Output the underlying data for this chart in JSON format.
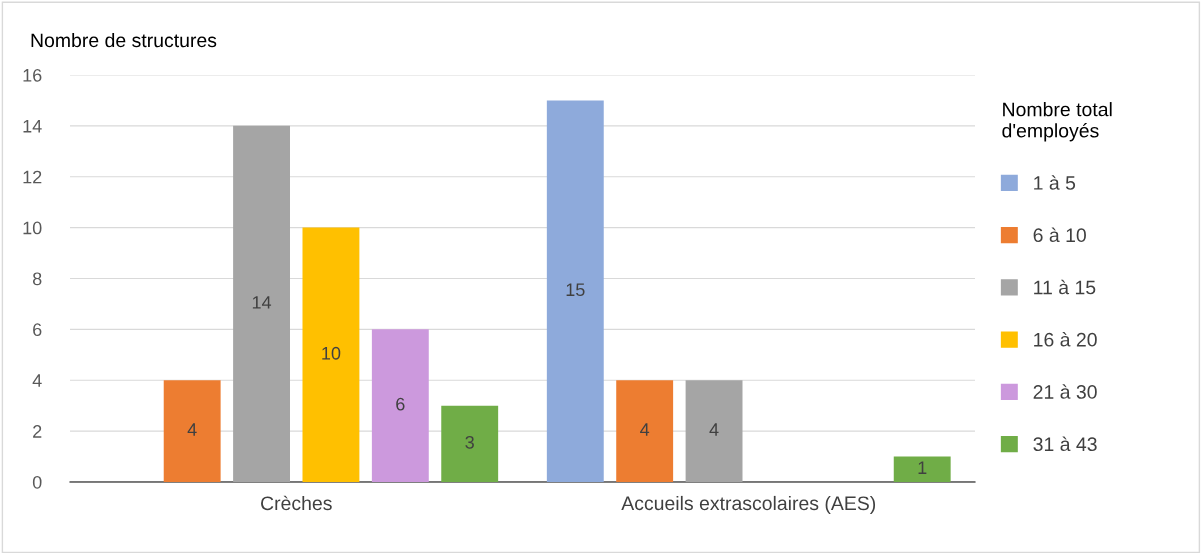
{
  "chart_data": {
    "type": "bar",
    "ylabel": "Nombre de structures",
    "legend_title": "Nombre total\nd'employés",
    "categories": [
      "Crèches",
      "Accueils extrascolaires (AES)"
    ],
    "series": [
      {
        "name": "1 à 5",
        "color": "#8eaadb",
        "values": [
          0,
          15
        ],
        "value_labels": [
          null,
          "15"
        ]
      },
      {
        "name": "6 à 10",
        "color": "#ed7d31",
        "values": [
          4,
          4
        ],
        "value_labels": [
          "4",
          "4"
        ]
      },
      {
        "name": "11 à 15",
        "color": "#a5a5a5",
        "values": [
          14,
          4
        ],
        "value_labels": [
          "14",
          "4"
        ]
      },
      {
        "name": "16 à 20",
        "color": "#ffc000",
        "values": [
          10,
          0
        ],
        "value_labels": [
          "10",
          null
        ]
      },
      {
        "name": "21 à 30",
        "color": "#cc99dd",
        "values": [
          6,
          0
        ],
        "value_labels": [
          "6",
          null
        ]
      },
      {
        "name": "31 à 43",
        "color": "#70ad47",
        "values": [
          3,
          1
        ],
        "value_labels": [
          "3",
          "1"
        ]
      }
    ],
    "ylim": [
      0,
      16
    ],
    "yticks": [
      0,
      2,
      4,
      6,
      8,
      10,
      12,
      14,
      16
    ],
    "grid": "y",
    "legend": "right"
  }
}
